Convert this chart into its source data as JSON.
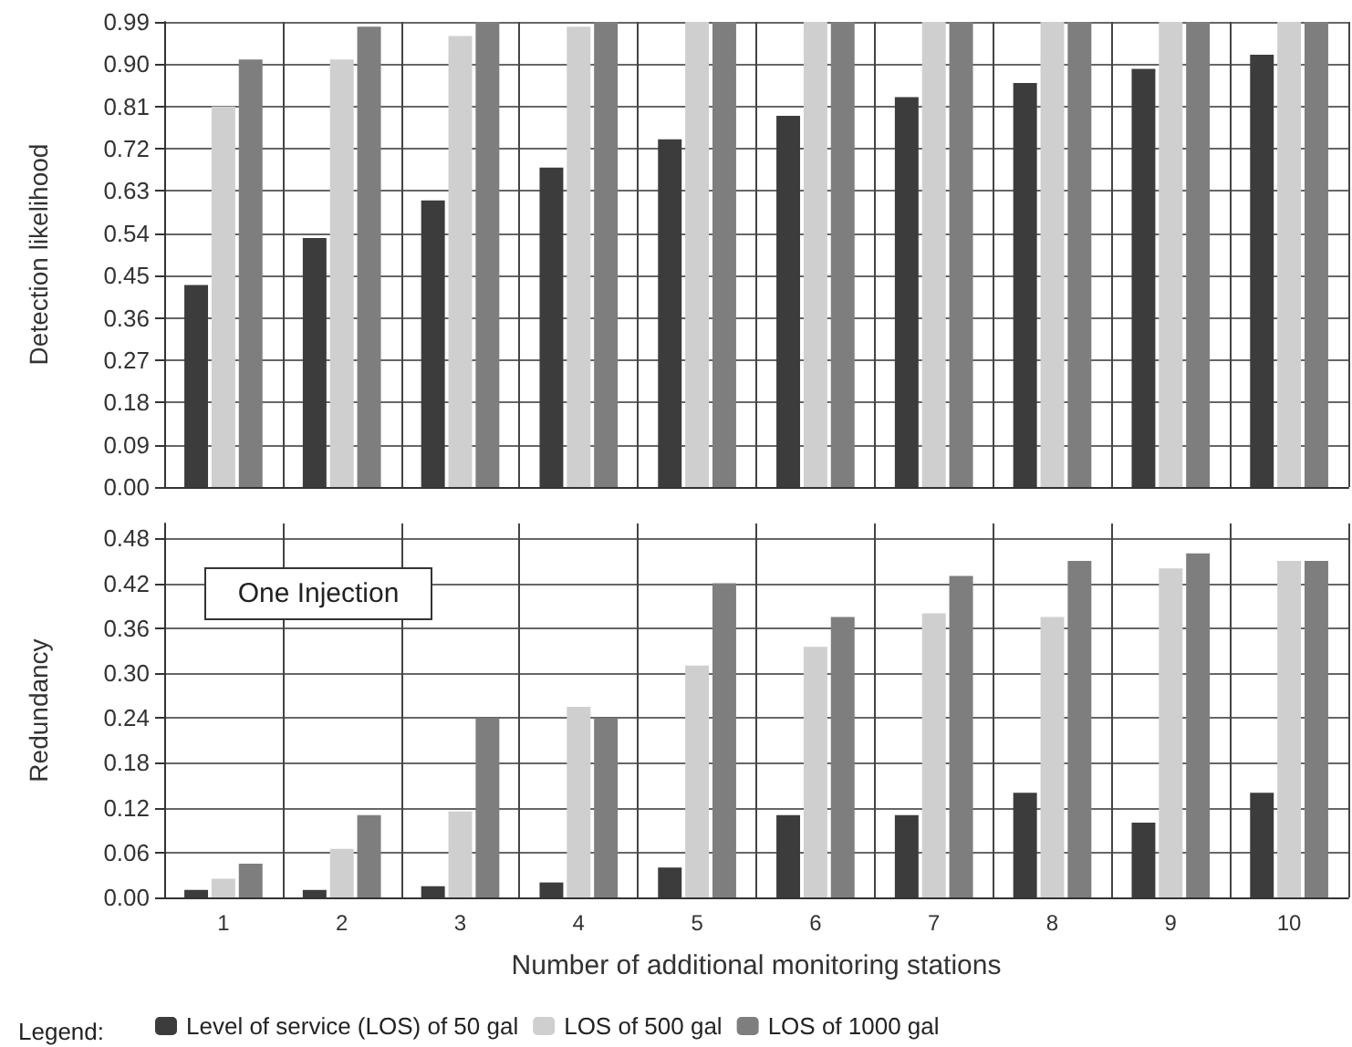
{
  "chart_data": [
    {
      "type": "bar",
      "ylabel": "Detection likelihood",
      "categories": [
        "1",
        "2",
        "3",
        "4",
        "5",
        "6",
        "7",
        "8",
        "9",
        "10"
      ],
      "series": [
        {
          "color": "#3c3c3c",
          "values": [
            0.43,
            0.53,
            0.61,
            0.68,
            0.74,
            0.79,
            0.83,
            0.86,
            0.89,
            0.92
          ]
        },
        {
          "color": "#cfcfcf",
          "values": [
            0.81,
            0.91,
            0.96,
            0.98,
            0.99,
            0.99,
            0.99,
            0.99,
            0.99,
            0.99
          ]
        },
        {
          "color": "#7e7e7e",
          "values": [
            0.91,
            0.98,
            0.99,
            0.99,
            0.99,
            0.99,
            0.99,
            0.99,
            0.99,
            0.99
          ]
        }
      ],
      "ylim": [
        0,
        0.99
      ],
      "yticks": [
        {
          "value": 0,
          "label": "0.00"
        },
        0.09,
        0.18,
        0.27,
        0.36,
        0.45,
        0.54,
        0.63,
        0.72,
        0.81,
        {
          "value": 0.9,
          "label": "0.90"
        },
        0.99
      ],
      "grid": true,
      "tick_labels": "y"
    },
    {
      "type": "bar",
      "xlabel": "Number of additional monitoring stations",
      "ylabel": "Redundancy",
      "legend_title": "Legend:",
      "annotations": [
        "One Injection"
      ],
      "categories": [
        "1",
        "2",
        "3",
        "4",
        "5",
        "6",
        "7",
        "8",
        "9",
        "10"
      ],
      "series": [
        {
          "name": "Level of service (LOS) of 50 gal",
          "color": "#3c3c3c",
          "values": [
            0.01,
            0.01,
            0.015,
            0.02,
            0.04,
            0.11,
            0.11,
            0.14,
            0.1,
            0.14
          ]
        },
        {
          "name": "LOS of 500 gal",
          "color": "#cfcfcf",
          "values": [
            0.025,
            0.065,
            0.115,
            0.255,
            0.31,
            0.335,
            0.38,
            0.375,
            0.44,
            0.45
          ]
        },
        {
          "name": "LOS of 1000 gal",
          "color": "#7e7e7e",
          "values": [
            0.045,
            0.11,
            0.24,
            0.24,
            0.42,
            0.375,
            0.43,
            0.45,
            0.46,
            0.45
          ]
        }
      ],
      "ylim": [
        0,
        0.5
      ],
      "yticks": [
        {
          "value": 0,
          "label": "0.00"
        },
        0.06,
        0.12,
        0.18,
        0.24,
        {
          "value": 0.3,
          "label": "0.30"
        },
        0.36,
        0.42,
        0.48
      ],
      "grid": true,
      "legend": "bottom"
    }
  ]
}
